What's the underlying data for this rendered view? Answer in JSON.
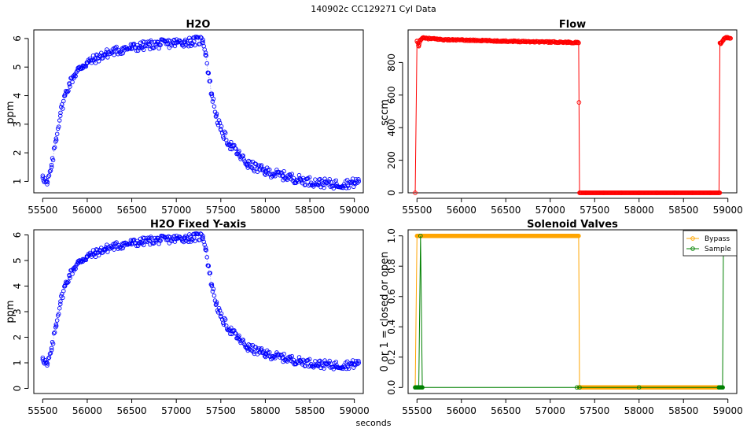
{
  "figure": {
    "suptitle": "140902c    CC129271   Cyl Data",
    "xlabel": "seconds"
  },
  "colors": {
    "h2o": "#0000ff",
    "flow": "#ff0000",
    "bypass": "#ffa500",
    "sample": "#008000",
    "axis": "#000000"
  },
  "chart_data": [
    {
      "id": "h2o",
      "type": "scatter",
      "title": "H2O",
      "xlabel": "",
      "ylabel": "ppm",
      "xlim": [
        55400,
        59100
      ],
      "ylim": [
        0.6,
        6.3
      ],
      "xticks": [
        55500,
        56000,
        56500,
        57000,
        57500,
        58000,
        58500,
        59000
      ],
      "yticks": [
        1,
        2,
        3,
        4,
        5,
        6
      ],
      "marker": "open-circle",
      "series": [
        {
          "name": "H2O",
          "x": [
            55500,
            55550,
            55600,
            55650,
            55700,
            55750,
            55800,
            55850,
            55900,
            55950,
            56000,
            56100,
            56200,
            56300,
            56400,
            56500,
            56600,
            56700,
            56800,
            56900,
            57000,
            57100,
            57200,
            57300,
            57330,
            57360,
            57400,
            57450,
            57500,
            57600,
            57700,
            57800,
            58000,
            58200,
            58400,
            58600,
            58800,
            59000,
            59050
          ],
          "y": [
            1.2,
            0.9,
            1.5,
            2.5,
            3.4,
            4.0,
            4.4,
            4.7,
            4.9,
            5.05,
            5.15,
            5.3,
            5.45,
            5.55,
            5.62,
            5.68,
            5.72,
            5.78,
            5.8,
            5.82,
            5.85,
            5.88,
            5.9,
            5.95,
            5.5,
            4.8,
            4.0,
            3.3,
            2.8,
            2.3,
            1.95,
            1.6,
            1.35,
            1.2,
            1.05,
            0.95,
            0.9,
            0.95,
            1.0
          ]
        }
      ]
    },
    {
      "id": "flow",
      "type": "line",
      "title": "Flow",
      "xlabel": "",
      "ylabel": "sccm",
      "xlim": [
        55400,
        59100
      ],
      "ylim": [
        0,
        1000
      ],
      "xticks": [
        55500,
        56000,
        56500,
        57000,
        57500,
        58000,
        58500,
        59000
      ],
      "yticks": [
        0,
        200,
        400,
        600,
        800
      ],
      "marker": "open-circle",
      "series": [
        {
          "name": "Flow",
          "x": [
            55480,
            55500,
            55520,
            55540,
            55560,
            55600,
            55700,
            55800,
            56000,
            56200,
            56400,
            56600,
            56800,
            57000,
            57200,
            57300,
            57320,
            57330,
            57400,
            57600,
            57800,
            58000,
            58200,
            58400,
            58600,
            58800,
            58900,
            58910,
            58920,
            58950,
            58980,
            59000,
            59030
          ],
          "y": [
            0,
            930,
            900,
            940,
            950,
            948,
            945,
            940,
            938,
            935,
            932,
            930,
            928,
            926,
            924,
            922,
            920,
            0,
            0,
            0,
            0,
            0,
            0,
            0,
            0,
            0,
            0,
            920,
            915,
            940,
            955,
            950,
            948
          ]
        }
      ]
    },
    {
      "id": "h2o_fixed",
      "type": "scatter",
      "title": "H2O Fixed Y-axis",
      "xlabel": "",
      "ylabel": "ppm",
      "xlim": [
        55400,
        59100
      ],
      "ylim": [
        -0.2,
        6.2
      ],
      "xticks": [
        55500,
        56000,
        56500,
        57000,
        57500,
        58000,
        58500,
        59000
      ],
      "yticks": [
        0,
        1,
        2,
        3,
        4,
        5,
        6
      ],
      "marker": "open-circle",
      "series": [
        {
          "name": "H2O",
          "x": [
            55500,
            55550,
            55600,
            55650,
            55700,
            55750,
            55800,
            55850,
            55900,
            55950,
            56000,
            56100,
            56200,
            56300,
            56400,
            56500,
            56600,
            56700,
            56800,
            56900,
            57000,
            57100,
            57200,
            57300,
            57330,
            57360,
            57400,
            57450,
            57500,
            57600,
            57700,
            57800,
            58000,
            58200,
            58400,
            58600,
            58800,
            59000,
            59050
          ],
          "y": [
            1.2,
            0.9,
            1.5,
            2.5,
            3.4,
            4.0,
            4.4,
            4.7,
            4.9,
            5.05,
            5.15,
            5.3,
            5.45,
            5.55,
            5.62,
            5.68,
            5.72,
            5.78,
            5.8,
            5.82,
            5.85,
            5.88,
            5.9,
            5.95,
            5.5,
            4.8,
            4.0,
            3.3,
            2.8,
            2.3,
            1.95,
            1.6,
            1.35,
            1.2,
            1.05,
            0.95,
            0.9,
            0.95,
            1.0
          ]
        }
      ]
    },
    {
      "id": "valves",
      "type": "line",
      "title": "Solenoid Valves",
      "xlabel": "",
      "ylabel": "0 or 1 = closed or open",
      "xlim": [
        55400,
        59100
      ],
      "ylim": [
        -0.04,
        1.04
      ],
      "xticks": [
        55500,
        56000,
        56500,
        57000,
        57500,
        58000,
        58500,
        59000
      ],
      "yticks": [
        0.0,
        0.2,
        0.4,
        0.6,
        0.8,
        1.0
      ],
      "yticklabels": [
        "0.0",
        "0.2",
        "0.4",
        "0.6",
        "0.8",
        "1.0"
      ],
      "legend": {
        "position": "top-right",
        "entries": [
          "Bypass",
          "Sample"
        ]
      },
      "marker": "open-circle",
      "series": [
        {
          "name": "Bypass",
          "x": [
            55480,
            55500,
            55520,
            56000,
            56500,
            57000,
            57300,
            57320,
            57330,
            58000,
            58500,
            58900,
            58920
          ],
          "y": [
            0,
            1,
            1,
            1,
            1,
            1,
            1,
            1,
            0,
            0,
            0,
            0,
            0
          ]
        },
        {
          "name": "Sample",
          "x": [
            55480,
            55500,
            55520,
            55540,
            55560,
            57300,
            57330,
            58000,
            58900,
            58920,
            58930,
            58940,
            58950,
            58960
          ],
          "y": [
            0,
            0,
            0,
            1,
            0,
            0,
            0,
            0,
            0,
            0,
            0,
            0,
            1,
            1
          ]
        }
      ]
    }
  ]
}
